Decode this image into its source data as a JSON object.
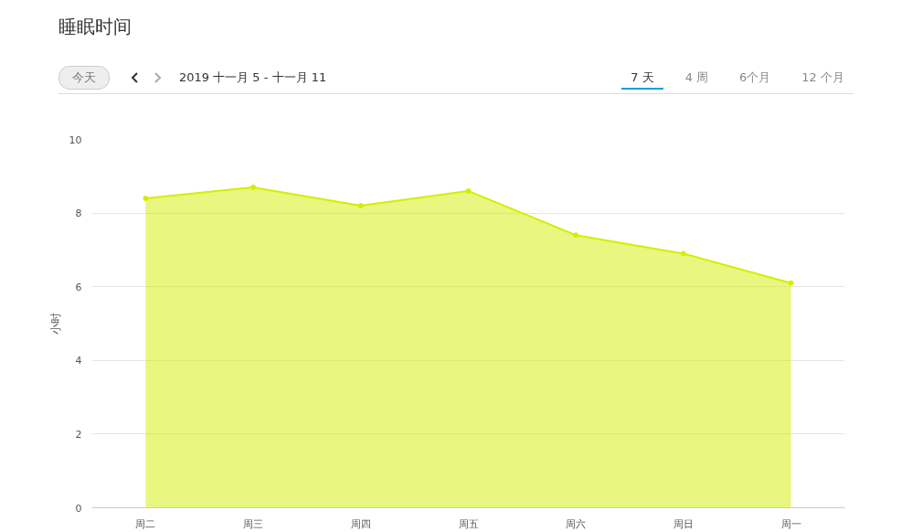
{
  "chart_data": {
    "type": "area",
    "title": "睡眠时间",
    "ylabel": "小时",
    "annotations": [
      "今天",
      "2019 十一月 5 - 十一月 11",
      "7 天",
      "4 周",
      "6个月",
      "12 个月"
    ],
    "categories": [
      "周二",
      "周三",
      "周四",
      "周五",
      "周六",
      "周日",
      "周一"
    ],
    "series": [
      {
        "color": "#d4ee00",
        "values": [
          8.4,
          8.7,
          8.2,
          8.6,
          7.4,
          6.9,
          6.1
        ]
      }
    ],
    "ylim": [
      0,
      10
    ],
    "yticks": [
      0,
      2,
      4,
      6,
      8,
      10
    ],
    "grid": "y",
    "marker": "circle",
    "line_style": "solid"
  }
}
